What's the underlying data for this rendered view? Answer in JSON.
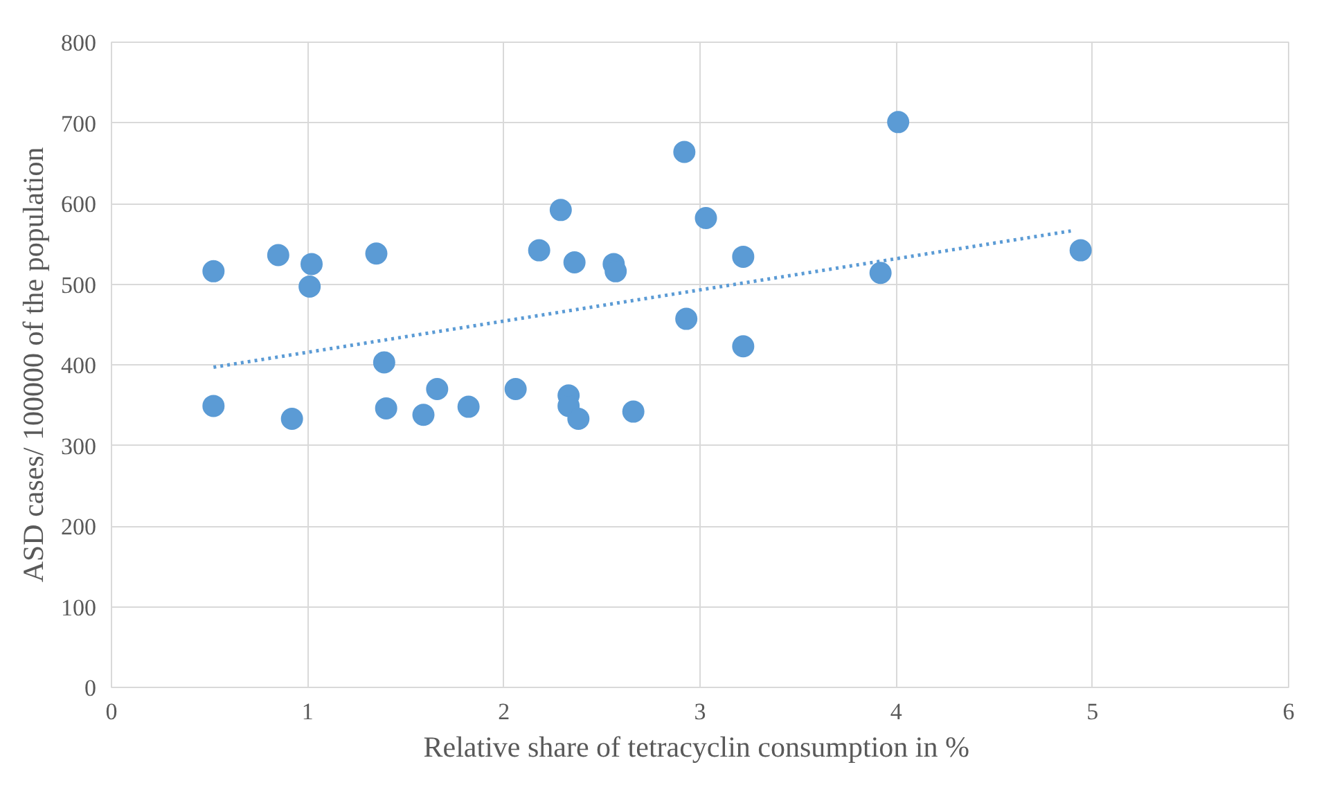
{
  "chart_data": {
    "type": "scatter",
    "xlabel": "Relative share of tetracyclin  consumption in %",
    "ylabel": "ASD cases/ 100000 of the population",
    "xlim": [
      0,
      6
    ],
    "ylim": [
      0,
      800
    ],
    "xticks": [
      0,
      1,
      2,
      3,
      4,
      5,
      6
    ],
    "yticks": [
      0,
      100,
      200,
      300,
      400,
      500,
      600,
      700,
      800
    ],
    "grid": true,
    "series": [
      {
        "color": "#5b9bd5",
        "marker": "circle",
        "x": [
          0.52,
          0.52,
          0.85,
          0.92,
          1.02,
          1.01,
          1.35,
          1.39,
          1.4,
          1.66,
          1.59,
          1.82,
          2.06,
          2.18,
          2.29,
          2.36,
          2.33,
          2.33,
          2.38,
          2.56,
          2.57,
          2.66,
          2.92,
          2.93,
          3.03,
          3.22,
          3.22,
          3.92,
          4.01,
          4.94
        ],
        "values": [
          516,
          349,
          536,
          333,
          525,
          497,
          538,
          403,
          346,
          370,
          338,
          348,
          370,
          542,
          592,
          527,
          362,
          349,
          333,
          525,
          516,
          342,
          664,
          457,
          582,
          534,
          423,
          514,
          701,
          542
        ]
      },
      {
        "type": "line",
        "color": "#5b9bd5",
        "line_style": "dotted",
        "x": [
          0.52,
          4.89
        ],
        "values": [
          397,
          566
        ]
      }
    ]
  }
}
